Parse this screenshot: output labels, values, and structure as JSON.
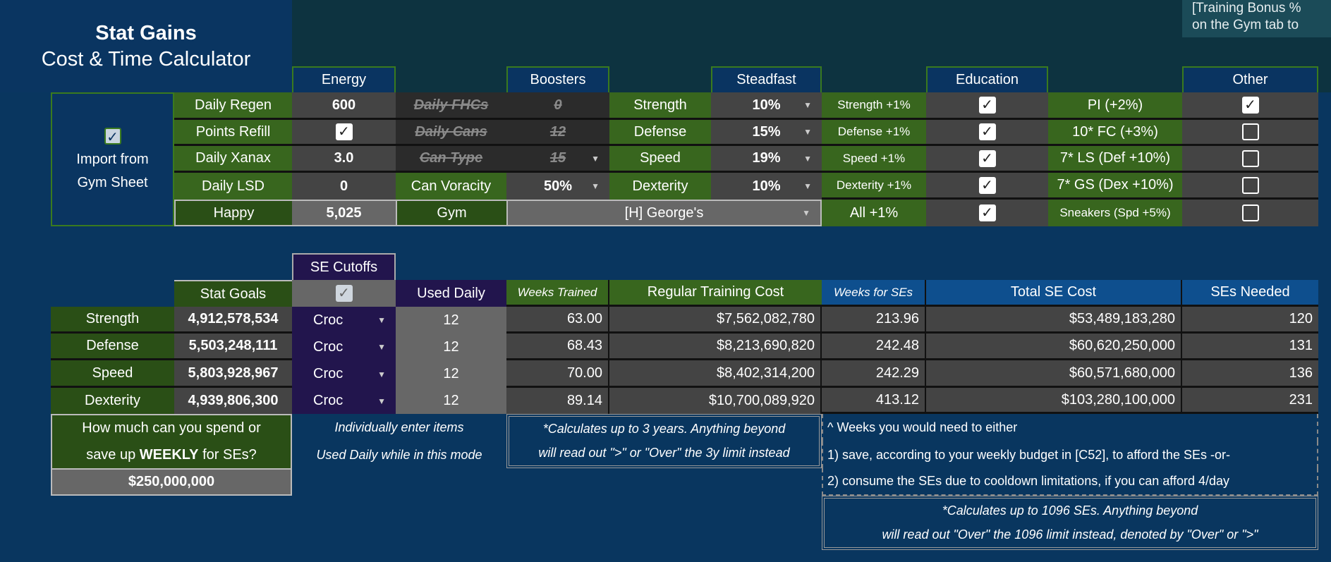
{
  "title": {
    "main": "Stat Gains",
    "sub": "Cost & Time Calculator"
  },
  "top_note": [
    "[Training Bonus %",
    "on the Gym tab to"
  ],
  "headers": {
    "energy": "Energy",
    "boosters": "Boosters",
    "steadfast": "Steadfast",
    "education": "Education",
    "other": "Other"
  },
  "import": {
    "checked": true,
    "line1": "Import from",
    "line2": "Gym Sheet"
  },
  "energy": {
    "regen_label": "Daily Regen",
    "regen": "600",
    "refill_label": "Points Refill",
    "refill_checked": true,
    "xanax_label": "Daily Xanax",
    "xanax": "3.0",
    "lsd_label": "Daily LSD",
    "lsd": "0",
    "happy_label": "Happy",
    "happy": "5,025"
  },
  "boosters": {
    "fhc_label": "Daily FHCs",
    "fhc": "0",
    "cans_label": "Daily Cans",
    "cans": "12",
    "cantype_label": "Can Type",
    "cantype": "15",
    "voracity_label": "Can Voracity",
    "voracity": "50%",
    "gym_label": "Gym",
    "gym": "[H] George's"
  },
  "steadfast": [
    {
      "label": "Strength",
      "value": "10%"
    },
    {
      "label": "Defense",
      "value": "15%"
    },
    {
      "label": "Speed",
      "value": "19%"
    },
    {
      "label": "Dexterity",
      "value": "10%"
    }
  ],
  "education": [
    {
      "label": "Strength +1%",
      "checked": true
    },
    {
      "label": "Defense +1%",
      "checked": true
    },
    {
      "label": "Speed +1%",
      "checked": true
    },
    {
      "label": "Dexterity +1%",
      "checked": true
    },
    {
      "label": "All +1%",
      "checked": true
    }
  ],
  "other": [
    {
      "label": "PI (+2%)",
      "checked": true
    },
    {
      "label": "10* FC (+3%)",
      "checked": false
    },
    {
      "label": "7* LS (Def +10%)",
      "checked": false
    },
    {
      "label": "7* GS (Dex +10%)",
      "checked": false
    },
    {
      "label": "Sneakers (Spd +5%)",
      "checked": false
    }
  ],
  "table": {
    "se_cutoffs": "SE Cutoffs",
    "se_cutoffs_checked": true,
    "columns": {
      "goals": "Stat Goals",
      "used": "Used Daily",
      "weeks": "Weeks Trained",
      "cost": "Regular Training Cost",
      "weeks_se": "Weeks for SEs",
      "se_cost": "Total SE Cost",
      "se_needed": "SEs Needed"
    },
    "rows": [
      {
        "stat": "Strength",
        "goal": "4,912,578,534",
        "item": "Croc",
        "used": "12",
        "weeks": "63.00",
        "cost": "$7,562,082,780",
        "weeks_se": "213.96",
        "se_cost": "$53,489,183,280",
        "se_needed": "120"
      },
      {
        "stat": "Defense",
        "goal": "5,503,248,111",
        "item": "Croc",
        "used": "12",
        "weeks": "68.43",
        "cost": "$8,213,690,820",
        "weeks_se": "242.48",
        "se_cost": "$60,620,250,000",
        "se_needed": "131"
      },
      {
        "stat": "Speed",
        "goal": "5,803,928,967",
        "item": "Croc",
        "used": "12",
        "weeks": "70.00",
        "cost": "$8,402,314,200",
        "weeks_se": "242.29",
        "se_cost": "$60,571,680,000",
        "se_needed": "136"
      },
      {
        "stat": "Dexterity",
        "goal": "4,939,806,300",
        "item": "Croc",
        "used": "12",
        "weeks": "89.14",
        "cost": "$10,700,089,920",
        "weeks_se": "413.12",
        "se_cost": "$103,280,100,000",
        "se_needed": "231"
      }
    ]
  },
  "budget": {
    "q1": "How much can you spend or",
    "q2a": "save up ",
    "q2b": "WEEKLY",
    "q2c": " for SEs?",
    "value": "$250,000,000"
  },
  "notes": {
    "used1": "Individually enter items",
    "used2": "Used Daily while in this mode",
    "limit1": "*Calculates up to 3 years. Anything beyond",
    "limit2": "will read out \">\" or \"Over\" the 3y limit instead",
    "weeks1": "^ Weeks you would need to either",
    "weeks2": "1) save, according to your weekly budget in [C52], to afford the SEs -or-",
    "weeks3": "2) consume the SEs due to cooldown limitations, if you can afford 4/day",
    "se1": "*Calculates up to 1096 SEs. Anything beyond",
    "se2": "will read out \"Over\" the 1096 limit instead, denoted by \"Over\" or \">\""
  }
}
